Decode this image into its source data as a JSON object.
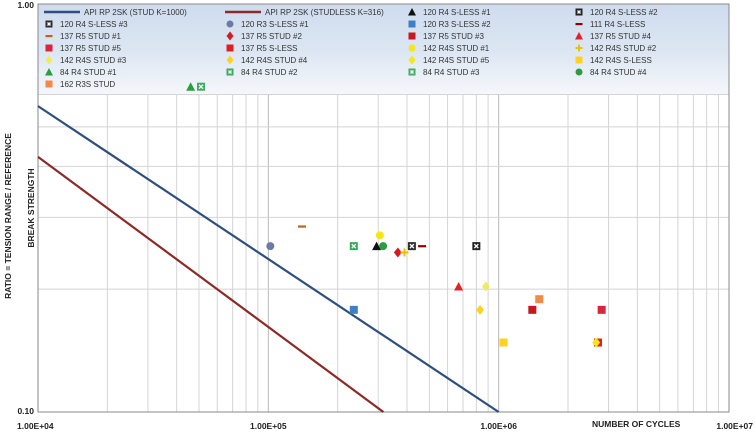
{
  "chart_data": {
    "type": "scatter",
    "title": "",
    "xlabel": "NUMBER OF CYCLES",
    "ylabel_line1": "RATIO = TENSION RANGE / REFERENCE",
    "ylabel_line2": "BREAK  STRENGTH",
    "x_scale": "log",
    "y_scale": "log",
    "xlim": [
      10000,
      10000000
    ],
    "ylim": [
      0.1,
      1.0
    ],
    "grid": true,
    "legend_position": "top",
    "x_tick_labels": [
      "1.00E+04",
      "1.00E+05",
      "1.00E+06",
      "1.00E+07"
    ],
    "y_tick_labels": [
      "1.00",
      "0.10"
    ],
    "lines": [
      {
        "name": "API RP 2SK (STUD K=1000)",
        "color": "#2e4f7d",
        "points": [
          [
            10000,
            0.562
          ],
          [
            1000000,
            0.1
          ]
        ]
      },
      {
        "name": "API RP 2SK (STUDLESS K=316)",
        "color": "#8b2b28",
        "points": [
          [
            10000,
            0.422
          ],
          [
            316000,
            0.1
          ]
        ]
      }
    ],
    "series": [
      {
        "name": "120 R4 S-LESS #1",
        "marker": "triangle",
        "color": "#111111",
        "points": [
          [
            295000,
            0.255
          ]
        ]
      },
      {
        "name": "120 R4 S-LESS #2",
        "marker": "xbox",
        "color": "#222222",
        "points": [
          [
            800000,
            0.255
          ]
        ]
      },
      {
        "name": "120 R4 S-LESS #3",
        "marker": "xbox",
        "color": "#2d2d2d",
        "points": [
          [
            420000,
            0.255
          ]
        ]
      },
      {
        "name": "120 R3 S-LESS #1",
        "marker": "circle",
        "color": "#6b7ba8",
        "points": [
          [
            102000,
            0.255
          ]
        ]
      },
      {
        "name": "120 R3 S-LESS #2",
        "marker": "square",
        "color": "#3f7fc4",
        "points": [
          [
            235000,
            0.178
          ]
        ]
      },
      {
        "name": "111 R4 S-LESS",
        "marker": "dash",
        "color": "#8b0000",
        "points": [
          [
            465000,
            0.255
          ]
        ]
      },
      {
        "name": "137 R5 STUD #1",
        "marker": "dash",
        "color": "#b8651b",
        "points": [
          [
            140000,
            0.285
          ]
        ]
      },
      {
        "name": "137 R5 STUD #2",
        "marker": "diamond",
        "color": "#d71920",
        "points": [
          [
            365000,
            0.246
          ]
        ]
      },
      {
        "name": "137 R5 STUD #3",
        "marker": "square",
        "color": "#c8171e",
        "points": [
          [
            1400000,
            0.178
          ]
        ]
      },
      {
        "name": "137 R5 STUD #4",
        "marker": "triangle",
        "color": "#e3202a",
        "points": [
          [
            670000,
            0.203
          ]
        ]
      },
      {
        "name": "137 R5 STUD #5",
        "marker": "square",
        "color": "#d7263d",
        "points": [
          [
            2800000,
            0.178
          ]
        ]
      },
      {
        "name": "137 R5 S-LESS",
        "marker": "square",
        "color": "#e02020",
        "points": [
          [
            2700000,
            0.148
          ]
        ]
      },
      {
        "name": "142 R4S STUD #1",
        "marker": "circle",
        "color": "#f5e615",
        "points": [
          [
            305000,
            0.271
          ]
        ]
      },
      {
        "name": "142 R4S STUD #2",
        "marker": "plus",
        "color": "#e8c400",
        "points": [
          [
            390000,
            0.246
          ]
        ]
      },
      {
        "name": "142 R4S STUD #3",
        "marker": "diamond",
        "color": "#f0ea60",
        "points": [
          [
            880000,
            0.203
          ]
        ]
      },
      {
        "name": "142 R4S STUD #4",
        "marker": "diamond",
        "color": "#ffd21f",
        "points": [
          [
            830000,
            0.178
          ]
        ]
      },
      {
        "name": "142 R4S STUD #5",
        "marker": "diamond",
        "color": "#f5e615",
        "points": [
          [
            2650000,
            0.148
          ]
        ]
      },
      {
        "name": "142 R4S S-LESS",
        "marker": "square",
        "color": "#ffd21f",
        "points": [
          [
            1050000,
            0.148
          ]
        ]
      },
      {
        "name": "84 R4 STUD #1",
        "marker": "triangle",
        "color": "#27a13a",
        "points": [
          [
            46000,
            0.627
          ]
        ]
      },
      {
        "name": "84 R4 STUD #2",
        "marker": "xbox",
        "color": "#3aa856",
        "points": [
          [
            235000,
            0.255
          ]
        ]
      },
      {
        "name": "84 R4 STUD #3",
        "marker": "xbox",
        "color": "#41ad62",
        "points": [
          [
            51000,
            0.627
          ]
        ]
      },
      {
        "name": "84 R4 STUD #4",
        "marker": "circle",
        "color": "#2e9a41",
        "points": [
          [
            315000,
            0.255
          ]
        ]
      },
      {
        "name": "162 R3S STUD",
        "marker": "square",
        "color": "#f28a45",
        "points": [
          [
            1500000,
            0.189
          ]
        ]
      }
    ]
  }
}
